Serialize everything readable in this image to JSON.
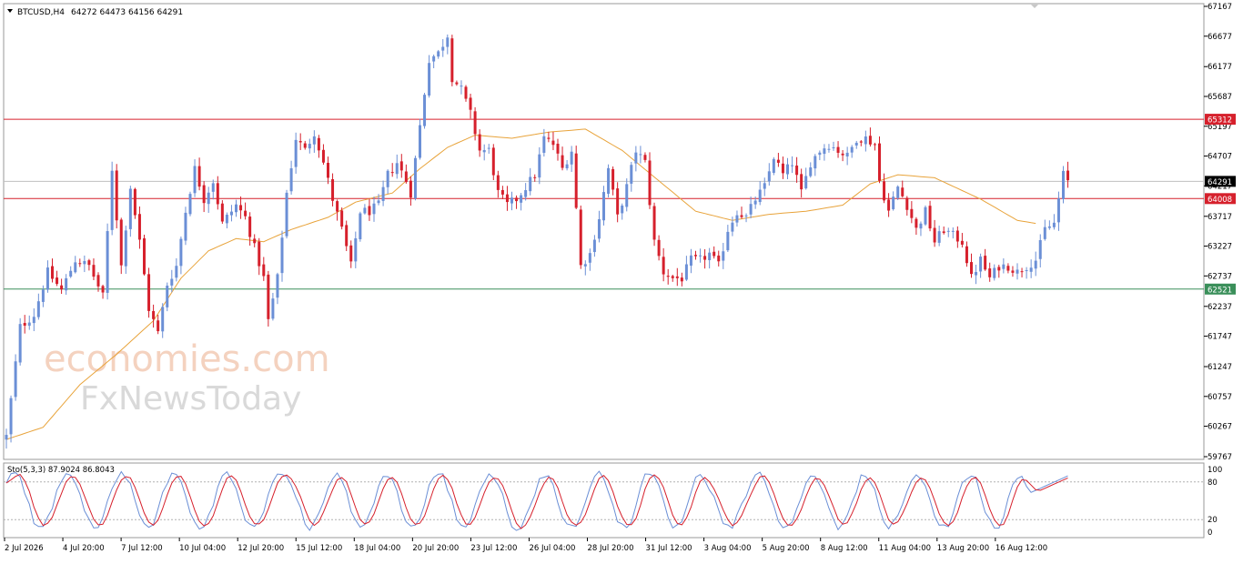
{
  "header": {
    "symbol": "BTCUSD,H4",
    "ohlc": "64272 64473 64156 64291"
  },
  "watermark": {
    "line1": "economies.com",
    "line2": "FxNewsToday"
  },
  "colors": {
    "bull": "#6b8fd6",
    "bear": "#d6202c",
    "ma": "#e8a33a",
    "resistance": "#d6202c",
    "support": "#3a8f5a",
    "stoch_main": "#6b8fd6",
    "stoch_signal": "#d6202c"
  },
  "chart_data": [
    {
      "type": "candlestick",
      "title": "BTCUSD,H4",
      "ylim": [
        59767,
        67167
      ],
      "y_ticks": [
        67167,
        66677,
        66177,
        65687,
        65197,
        64707,
        64217,
        63717,
        63227,
        62737,
        62237,
        61747,
        61247,
        60757,
        60267,
        59767
      ],
      "x_tick_labels": [
        "2 Jul 2026",
        "4 Jul 20:00",
        "7 Jul 12:00",
        "10 Jul 04:00",
        "12 Jul 20:00",
        "15 Jul 12:00",
        "18 Jul 04:00",
        "20 Jul 20:00",
        "23 Jul 12:00",
        "26 Jul 04:00",
        "28 Jul 20:00",
        "31 Jul 12:00",
        "3 Aug 04:00",
        "5 Aug 20:00",
        "8 Aug 12:00",
        "11 Aug 04:00",
        "13 Aug 20:00",
        "16 Aug 12:00"
      ],
      "levels": [
        {
          "value": 65312,
          "label": "65312",
          "role": "resistance"
        },
        {
          "value": 64008,
          "label": "64008",
          "role": "resistance"
        },
        {
          "value": 62521,
          "label": "62521",
          "role": "support"
        }
      ],
      "current_price": {
        "value": 64291,
        "label": "64291"
      },
      "close_path": [
        [
          0,
          60100
        ],
        [
          3,
          61900
        ],
        [
          6,
          62100
        ],
        [
          9,
          62800
        ],
        [
          12,
          62500
        ],
        [
          15,
          63000
        ],
        [
          18,
          62900
        ],
        [
          21,
          62400
        ],
        [
          23,
          64500
        ],
        [
          25,
          62900
        ],
        [
          27,
          64200
        ],
        [
          29,
          63300
        ],
        [
          31,
          62200
        ],
        [
          33,
          61800
        ],
        [
          35,
          62600
        ],
        [
          37,
          62900
        ],
        [
          39,
          63800
        ],
        [
          41,
          64500
        ],
        [
          43,
          64000
        ],
        [
          45,
          64300
        ],
        [
          47,
          63600
        ],
        [
          50,
          63900
        ],
        [
          52,
          63700
        ],
        [
          54,
          63200
        ],
        [
          56,
          62700
        ],
        [
          57,
          62000
        ],
        [
          59,
          62700
        ],
        [
          61,
          64100
        ],
        [
          63,
          65000
        ],
        [
          65,
          64800
        ],
        [
          67,
          65100
        ],
        [
          69,
          64600
        ],
        [
          71,
          64000
        ],
        [
          73,
          63500
        ],
        [
          75,
          62900
        ],
        [
          77,
          63800
        ],
        [
          79,
          63800
        ],
        [
          81,
          63900
        ],
        [
          83,
          64400
        ],
        [
          85,
          64600
        ],
        [
          87,
          64300
        ],
        [
          88,
          64100
        ],
        [
          90,
          65200
        ],
        [
          92,
          66300
        ],
        [
          94,
          66400
        ],
        [
          96,
          66700
        ],
        [
          97,
          66000
        ],
        [
          99,
          65800
        ],
        [
          101,
          65400
        ],
        [
          103,
          64800
        ],
        [
          105,
          64800
        ],
        [
          107,
          64100
        ],
        [
          109,
          63900
        ],
        [
          111,
          64000
        ],
        [
          113,
          64200
        ],
        [
          115,
          64400
        ],
        [
          117,
          65000
        ],
        [
          119,
          64900
        ],
        [
          121,
          64500
        ],
        [
          123,
          64800
        ],
        [
          125,
          62900
        ],
        [
          127,
          63100
        ],
        [
          129,
          63700
        ],
        [
          131,
          64500
        ],
        [
          133,
          63700
        ],
        [
          135,
          64200
        ],
        [
          137,
          64800
        ],
        [
          139,
          64600
        ],
        [
          141,
          63300
        ],
        [
          143,
          62800
        ],
        [
          145,
          62700
        ],
        [
          147,
          62700
        ],
        [
          149,
          63000
        ],
        [
          151,
          63000
        ],
        [
          153,
          63100
        ],
        [
          155,
          62900
        ],
        [
          157,
          63500
        ],
        [
          159,
          63800
        ],
        [
          161,
          63700
        ],
        [
          163,
          64000
        ],
        [
          165,
          64200
        ],
        [
          167,
          64700
        ],
        [
          169,
          64400
        ],
        [
          171,
          64600
        ],
        [
          173,
          64100
        ],
        [
          175,
          64600
        ],
        [
          177,
          64800
        ],
        [
          179,
          64900
        ],
        [
          181,
          64800
        ],
        [
          183,
          64700
        ],
        [
          185,
          65000
        ],
        [
          187,
          65000
        ],
        [
          189,
          64900
        ],
        [
          190,
          64300
        ],
        [
          192,
          63800
        ],
        [
          194,
          64200
        ],
        [
          196,
          63900
        ],
        [
          198,
          63500
        ],
        [
          200,
          63800
        ],
        [
          202,
          63300
        ],
        [
          204,
          63500
        ],
        [
          206,
          63400
        ],
        [
          208,
          63300
        ],
        [
          210,
          62700
        ],
        [
          212,
          63000
        ],
        [
          214,
          62700
        ],
        [
          216,
          62900
        ],
        [
          218,
          62900
        ],
        [
          220,
          62800
        ],
        [
          222,
          62900
        ],
        [
          224,
          63000
        ],
        [
          226,
          63500
        ],
        [
          228,
          63600
        ],
        [
          230,
          64400
        ],
        [
          231,
          64291
        ]
      ],
      "ma_path": [
        [
          0,
          60050
        ],
        [
          8,
          60250
        ],
        [
          16,
          60950
        ],
        [
          24,
          61450
        ],
        [
          32,
          62000
        ],
        [
          38,
          62700
        ],
        [
          44,
          63150
        ],
        [
          50,
          63350
        ],
        [
          56,
          63300
        ],
        [
          62,
          63500
        ],
        [
          70,
          63700
        ],
        [
          76,
          63950
        ],
        [
          84,
          64100
        ],
        [
          90,
          64500
        ],
        [
          96,
          64850
        ],
        [
          102,
          65050
        ],
        [
          110,
          65000
        ],
        [
          118,
          65100
        ],
        [
          126,
          65150
        ],
        [
          134,
          64800
        ],
        [
          142,
          64300
        ],
        [
          150,
          63800
        ],
        [
          158,
          63650
        ],
        [
          166,
          63750
        ],
        [
          174,
          63800
        ],
        [
          182,
          63900
        ],
        [
          188,
          64250
        ],
        [
          194,
          64400
        ],
        [
          202,
          64350
        ],
        [
          212,
          64000
        ],
        [
          220,
          63650
        ],
        [
          224,
          63600
        ]
      ]
    },
    {
      "type": "line",
      "title": "Sto(5,3,3) 87.9024 86.8043",
      "ylim": [
        0,
        100
      ],
      "y_ticks": [
        100,
        80,
        20,
        0
      ],
      "series": [
        {
          "role": "main"
        },
        {
          "role": "signal"
        }
      ]
    }
  ]
}
